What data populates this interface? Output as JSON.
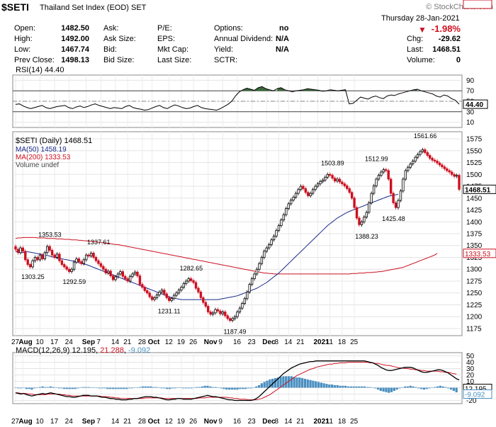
{
  "header": {
    "symbol": "$SETI",
    "subtitle": "Thailand Set Index (EOD)  SET",
    "watermark": "© StockCharts.com",
    "date": "Thursday  28-Jan-2021"
  },
  "quote": {
    "open_label": "Open:",
    "open": "1482.50",
    "high_label": "High:",
    "high": "1492.00",
    "low_label": "Low:",
    "low": "1467.74",
    "prev_label": "Prev Close:",
    "prev": "1498.13",
    "ask_label": "Ask:",
    "ask": "",
    "asksize_label": "Ask Size:",
    "asksize": "",
    "bid_label": "Bid:",
    "bid": "",
    "bidsize_label": "Bid Size:",
    "bidsize": "",
    "pe_label": "P/E:",
    "eps_label": "EPS:",
    "mktcap_label": "Mkt Cap:",
    "lastsize_label": "Last Size:",
    "options_label": "Options:",
    "options": "no",
    "div_label": "Annual Dividend:",
    "div": "N/A",
    "yield_label": "Yield:",
    "yield": "N/A",
    "sctr_label": "SCTR:",
    "sctr": "",
    "pct_change": "-1.98%",
    "chg_label": "Chg:",
    "chg": "-29.62",
    "last_label": "Last:",
    "last": "1468.51",
    "volume_label": "Volume:",
    "volume": "0"
  },
  "colors": {
    "up": "#000000",
    "down": "#cc1020",
    "ma50": "#1a2a8a",
    "ma200": "#cc1020",
    "rsi": "#000000",
    "rsi_fill": "#3a6a3a",
    "macd_hist": "#4a8fc0",
    "signal": "#cc1020"
  },
  "chart_data": [
    {
      "type": "line",
      "title": "RSI(14) 44.40",
      "y_ticks": [
        10,
        30,
        50,
        70,
        90
      ],
      "ylim": [
        0,
        100
      ],
      "levels": [
        30,
        70
      ],
      "last_label": "44.40",
      "values": [
        44,
        45,
        41,
        38,
        36,
        38,
        40,
        42,
        38,
        36,
        38,
        40,
        41,
        42,
        38,
        36,
        39,
        41,
        38,
        40,
        43,
        45,
        42,
        40,
        38,
        36,
        38,
        37,
        36,
        40,
        42,
        38,
        36,
        35,
        33,
        34,
        37,
        40,
        42,
        38,
        36,
        40,
        43,
        41,
        38,
        36,
        37,
        40,
        42,
        38,
        36,
        35,
        34,
        33,
        36,
        40,
        44,
        50,
        60,
        68,
        72,
        75,
        73,
        71,
        76,
        78,
        74,
        72,
        70,
        74,
        76,
        72,
        70,
        68,
        70,
        71,
        72,
        74,
        73,
        72,
        71,
        69,
        70,
        72,
        71,
        70,
        71,
        72,
        45,
        46,
        52,
        58,
        56,
        54,
        58,
        60,
        57,
        55,
        60,
        62,
        61,
        64,
        66,
        68,
        70,
        72,
        73,
        70,
        68,
        66,
        64,
        60,
        58,
        62,
        60,
        55,
        52,
        44.4
      ]
    },
    {
      "type": "candlestick",
      "title": "$SETI (Daily) 1468.51",
      "legend": [
        "MA(50) 1458.19",
        "MA(200) 1333.53",
        "Volume undef"
      ],
      "y_ticks": [
        1175,
        1200,
        1225,
        1250,
        1275,
        1300,
        1325,
        1350,
        1375,
        1400,
        1425,
        1450,
        1475,
        1500,
        1525,
        1550,
        1575
      ],
      "ylim": [
        1160,
        1590
      ],
      "last_label": "1468.51",
      "ma50_label": "1458.19",
      "ma200_label": "1333.53",
      "annotations": [
        {
          "label": "1353.53",
          "i": 14,
          "v": 1353.53,
          "pos": "above"
        },
        {
          "label": "1303.25",
          "i": 7,
          "v": 1303.25,
          "pos": "below"
        },
        {
          "label": "1337.61",
          "i": 34,
          "v": 1337.61,
          "pos": "above"
        },
        {
          "label": "1292.59",
          "i": 24,
          "v": 1292.59,
          "pos": "below"
        },
        {
          "label": "1282.65",
          "i": 72,
          "v": 1282.65,
          "pos": "above"
        },
        {
          "label": "1231.11",
          "i": 63,
          "v": 1231.11,
          "pos": "below"
        },
        {
          "label": "1187.49",
          "i": 90,
          "v": 1187.49,
          "pos": "below"
        },
        {
          "label": "1503.89",
          "i": 130,
          "v": 1503.89,
          "pos": "above"
        },
        {
          "label": "1512.99",
          "i": 148,
          "v": 1512.99,
          "pos": "above"
        },
        {
          "label": "1388.23",
          "i": 144,
          "v": 1388.23,
          "pos": "below"
        },
        {
          "label": "1425.48",
          "i": 155,
          "v": 1425.48,
          "pos": "below"
        },
        {
          "label": "1561.66",
          "i": 168,
          "v": 1561.66,
          "pos": "above"
        }
      ],
      "closes": [
        1342,
        1335,
        1345,
        1338,
        1320,
        1310,
        1305,
        1318,
        1325,
        1320,
        1330,
        1322,
        1335,
        1348,
        1340,
        1330,
        1325,
        1332,
        1318,
        1310,
        1305,
        1300,
        1295,
        1300,
        1315,
        1322,
        1316,
        1312,
        1320,
        1330,
        1328,
        1334,
        1325,
        1318,
        1312,
        1306,
        1300,
        1292,
        1296,
        1286,
        1278,
        1284,
        1290,
        1295,
        1285,
        1280,
        1275,
        1285,
        1290,
        1294,
        1286,
        1268,
        1262,
        1255,
        1250,
        1242,
        1236,
        1240,
        1246,
        1252,
        1256,
        1248,
        1240,
        1234,
        1238,
        1245,
        1250,
        1256,
        1262,
        1270,
        1275,
        1280,
        1276,
        1272,
        1260,
        1252,
        1240,
        1230,
        1222,
        1210,
        1205,
        1208,
        1215,
        1212,
        1206,
        1210,
        1202,
        1196,
        1192,
        1196,
        1200,
        1210,
        1218,
        1228,
        1238,
        1252,
        1268,
        1280,
        1290,
        1300,
        1312,
        1325,
        1338,
        1345,
        1352,
        1362,
        1370,
        1382,
        1392,
        1404,
        1415,
        1428,
        1438,
        1446,
        1452,
        1460,
        1468,
        1475,
        1470,
        1462,
        1455,
        1460,
        1468,
        1475,
        1480,
        1485,
        1488,
        1494,
        1500,
        1498,
        1492,
        1486,
        1490,
        1484,
        1480,
        1476,
        1470,
        1462,
        1450,
        1430,
        1408,
        1394,
        1400,
        1410,
        1420,
        1440,
        1460,
        1476,
        1490,
        1498,
        1505,
        1510,
        1508,
        1490,
        1460,
        1440,
        1430,
        1445,
        1465,
        1490,
        1508,
        1515,
        1522,
        1528,
        1536,
        1542,
        1548,
        1552,
        1546,
        1540,
        1534,
        1530,
        1528,
        1524,
        1520,
        1516,
        1512,
        1508,
        1505,
        1500,
        1496,
        1498,
        1468.51
      ],
      "ma50": [
        1338,
        1336,
        1335,
        1335,
        1336,
        1337,
        1336,
        1335,
        1334,
        1333,
        1332,
        1331,
        1330,
        1329,
        1328,
        1326,
        1325,
        1324,
        1323,
        1322,
        1321,
        1320,
        1319,
        1318,
        1317,
        1316,
        1314,
        1312,
        1311,
        1310,
        1308,
        1306,
        1304,
        1302,
        1300,
        1298,
        1296,
        1294,
        1292,
        1290,
        1288,
        1286,
        1284,
        1282,
        1280,
        1278,
        1276,
        1274,
        1272,
        1270,
        1268,
        1266,
        1264,
        1262,
        1260,
        1258,
        1256,
        1254,
        1252,
        1250,
        1248,
        1246,
        1244,
        1242,
        1240,
        1239,
        1238,
        1237,
        1236,
        1236,
        1236,
        1236,
        1236,
        1236,
        1236,
        1236,
        1236,
        1236,
        1236,
        1236,
        1236,
        1236,
        1236,
        1236,
        1237,
        1238,
        1239,
        1240,
        1241,
        1242,
        1243,
        1244,
        1246,
        1248,
        1250,
        1252,
        1254,
        1256,
        1258,
        1260,
        1263,
        1266,
        1269,
        1272,
        1276,
        1280,
        1284,
        1288,
        1292,
        1297,
        1302,
        1307,
        1312,
        1317,
        1322,
        1327,
        1332,
        1337,
        1342,
        1347,
        1352,
        1357,
        1362,
        1367,
        1372,
        1377,
        1382,
        1387,
        1392,
        1396,
        1400,
        1404,
        1408,
        1411,
        1414,
        1417,
        1420,
        1422,
        1424,
        1426,
        1428,
        1430,
        1432,
        1434,
        1436,
        1438,
        1440,
        1442,
        1444,
        1446,
        1448,
        1450,
        1452,
        1454,
        1455,
        1456,
        1457,
        1458.19
      ],
      "ma200": [
        1365,
        1366,
        1366,
        1367,
        1367,
        1367,
        1367,
        1367,
        1367,
        1366,
        1366,
        1366,
        1366,
        1365,
        1365,
        1365,
        1365,
        1364,
        1364,
        1364,
        1363,
        1363,
        1363,
        1362,
        1362,
        1362,
        1361,
        1361,
        1360,
        1360,
        1359,
        1359,
        1358,
        1358,
        1357,
        1357,
        1356,
        1355,
        1355,
        1354,
        1353,
        1352,
        1352,
        1351,
        1350,
        1349,
        1348,
        1347,
        1346,
        1345,
        1344,
        1343,
        1342,
        1341,
        1340,
        1339,
        1338,
        1337,
        1336,
        1335,
        1334,
        1333,
        1332,
        1331,
        1330,
        1329,
        1328,
        1327,
        1326,
        1325,
        1324,
        1323,
        1322,
        1321,
        1320,
        1319,
        1318,
        1317,
        1316,
        1315,
        1314,
        1313,
        1312,
        1311,
        1310,
        1309,
        1308,
        1307,
        1306,
        1305,
        1304,
        1303,
        1302,
        1301,
        1300,
        1299,
        1298,
        1297,
        1296,
        1295,
        1294,
        1293,
        1292,
        1292,
        1291,
        1291,
        1290,
        1290,
        1290,
        1290,
        1290,
        1290,
        1290,
        1290,
        1290,
        1290,
        1290,
        1290,
        1290,
        1290,
        1290,
        1290,
        1290,
        1290,
        1290,
        1290,
        1290,
        1290,
        1290,
        1290,
        1290,
        1290,
        1290,
        1290,
        1290,
        1290,
        1290,
        1290,
        1291,
        1291,
        1291,
        1292,
        1292,
        1292,
        1293,
        1293,
        1293,
        1294,
        1294,
        1295,
        1295,
        1296,
        1297,
        1298,
        1299,
        1300,
        1301,
        1302,
        1303,
        1304,
        1306,
        1308,
        1310,
        1312,
        1314,
        1316,
        1318,
        1320,
        1322,
        1324,
        1326,
        1328,
        1330,
        1333.53
      ]
    },
    {
      "type": "line",
      "title": "MACD(12,26,9)",
      "macd_label": "12.195",
      "signal_label": "21.288",
      "hist_label": "-9.092",
      "y_ticks": [
        -20,
        -10,
        0,
        10,
        20,
        30,
        40,
        50
      ],
      "ylim": [
        -25,
        55
      ],
      "macd": [
        -8,
        -9,
        -10,
        -9,
        -11,
        -12,
        -13,
        -12,
        -11,
        -10,
        -9,
        -10,
        -9,
        -8,
        -9,
        -10,
        -11,
        -12,
        -13,
        -14,
        -14,
        -15,
        -15,
        -14,
        -13,
        -12,
        -12,
        -12,
        -13,
        -13,
        -13,
        -14,
        -15,
        -15,
        -16,
        -17,
        -17,
        -18,
        -18,
        -19,
        -19,
        -19,
        -18,
        -18,
        -17,
        -17,
        -16,
        -15,
        -14,
        -14,
        -14,
        -15,
        -15,
        -16,
        -17,
        -18,
        -19,
        -19,
        -18,
        -18,
        -17,
        -17,
        -18,
        -18,
        -18,
        -18,
        -17,
        -16,
        -15,
        -14,
        -13,
        -12,
        -13,
        -14,
        -14,
        -15,
        -16,
        -17,
        -18,
        -19,
        -19,
        -20,
        -20,
        -20,
        -20,
        -20,
        -20,
        -20,
        -19,
        -17,
        -14,
        -10,
        -6,
        -2,
        2,
        6,
        10,
        14,
        18,
        22,
        25,
        28,
        31,
        33,
        35,
        37,
        38,
        39,
        40,
        41,
        41,
        42,
        42,
        42,
        42,
        42,
        42,
        42,
        42,
        42,
        42,
        42,
        42,
        42,
        42,
        42,
        42,
        42,
        42,
        42,
        41,
        40,
        39,
        37,
        35,
        32,
        30,
        28,
        27,
        27,
        28,
        29,
        30,
        31,
        32,
        32,
        32,
        31,
        29,
        27,
        25,
        24,
        24,
        25,
        26,
        27,
        28,
        28,
        27,
        25,
        23,
        20,
        17,
        14,
        12.195
      ],
      "signal": [
        -8,
        -8,
        -9,
        -9,
        -9,
        -10,
        -10,
        -11,
        -11,
        -11,
        -11,
        -11,
        -10,
        -10,
        -10,
        -10,
        -10,
        -11,
        -11,
        -12,
        -12,
        -13,
        -13,
        -13,
        -13,
        -13,
        -13,
        -13,
        -13,
        -13,
        -13,
        -13,
        -14,
        -14,
        -14,
        -15,
        -15,
        -16,
        -16,
        -17,
        -17,
        -17,
        -17,
        -17,
        -17,
        -17,
        -17,
        -17,
        -16,
        -16,
        -16,
        -16,
        -16,
        -16,
        -16,
        -17,
        -17,
        -17,
        -17,
        -17,
        -17,
        -17,
        -17,
        -17,
        -17,
        -17,
        -17,
        -17,
        -16,
        -16,
        -16,
        -15,
        -15,
        -15,
        -15,
        -15,
        -15,
        -15,
        -15,
        -16,
        -16,
        -17,
        -17,
        -18,
        -18,
        -18,
        -19,
        -19,
        -19,
        -19,
        -18,
        -17,
        -15,
        -13,
        -11,
        -8,
        -5,
        -2,
        1,
        4,
        7,
        10,
        13,
        16,
        19,
        21,
        23,
        25,
        27,
        29,
        30,
        32,
        33,
        34,
        35,
        36,
        37,
        37,
        38,
        38,
        39,
        39,
        39,
        40,
        40,
        40,
        40,
        40,
        40,
        40,
        40,
        39,
        39,
        38,
        38,
        37,
        36,
        35,
        35,
        34,
        33,
        32,
        31,
        31,
        30,
        30,
        29,
        29,
        28,
        28,
        27,
        27,
        26,
        26,
        26,
        26,
        26,
        25,
        25,
        24,
        24,
        23,
        22,
        21.288
      ]
    }
  ],
  "x_axis": {
    "labels": [
      {
        "label": "27",
        "i": 0
      },
      {
        "label": "Aug",
        "i": 3,
        "bold": true
      },
      {
        "label": "10",
        "i": 10
      },
      {
        "label": "17",
        "i": 16
      },
      {
        "label": "24",
        "i": 22
      },
      {
        "label": "Sep",
        "i": 29,
        "bold": true
      },
      {
        "label": "7",
        "i": 35
      },
      {
        "label": "14",
        "i": 41
      },
      {
        "label": "21",
        "i": 46
      },
      {
        "label": "28",
        "i": 52
      },
      {
        "label": "Oct",
        "i": 56,
        "bold": true
      },
      {
        "label": "12",
        "i": 63
      },
      {
        "label": "19",
        "i": 68
      },
      {
        "label": "26",
        "i": 73
      },
      {
        "label": "Nov",
        "i": 79,
        "bold": true
      },
      {
        "label": "9",
        "i": 85
      },
      {
        "label": "16",
        "i": 91
      },
      {
        "label": "23",
        "i": 97
      },
      {
        "label": "Dec",
        "i": 103,
        "bold": true
      },
      {
        "label": "8",
        "i": 108
      },
      {
        "label": "14",
        "i": 112
      },
      {
        "label": "21",
        "i": 117
      },
      {
        "label": "2021",
        "i": 124,
        "bold": true
      },
      {
        "label": "11",
        "i": 129
      },
      {
        "label": "18",
        "i": 134
      },
      {
        "label": "25",
        "i": 139
      }
    ]
  }
}
